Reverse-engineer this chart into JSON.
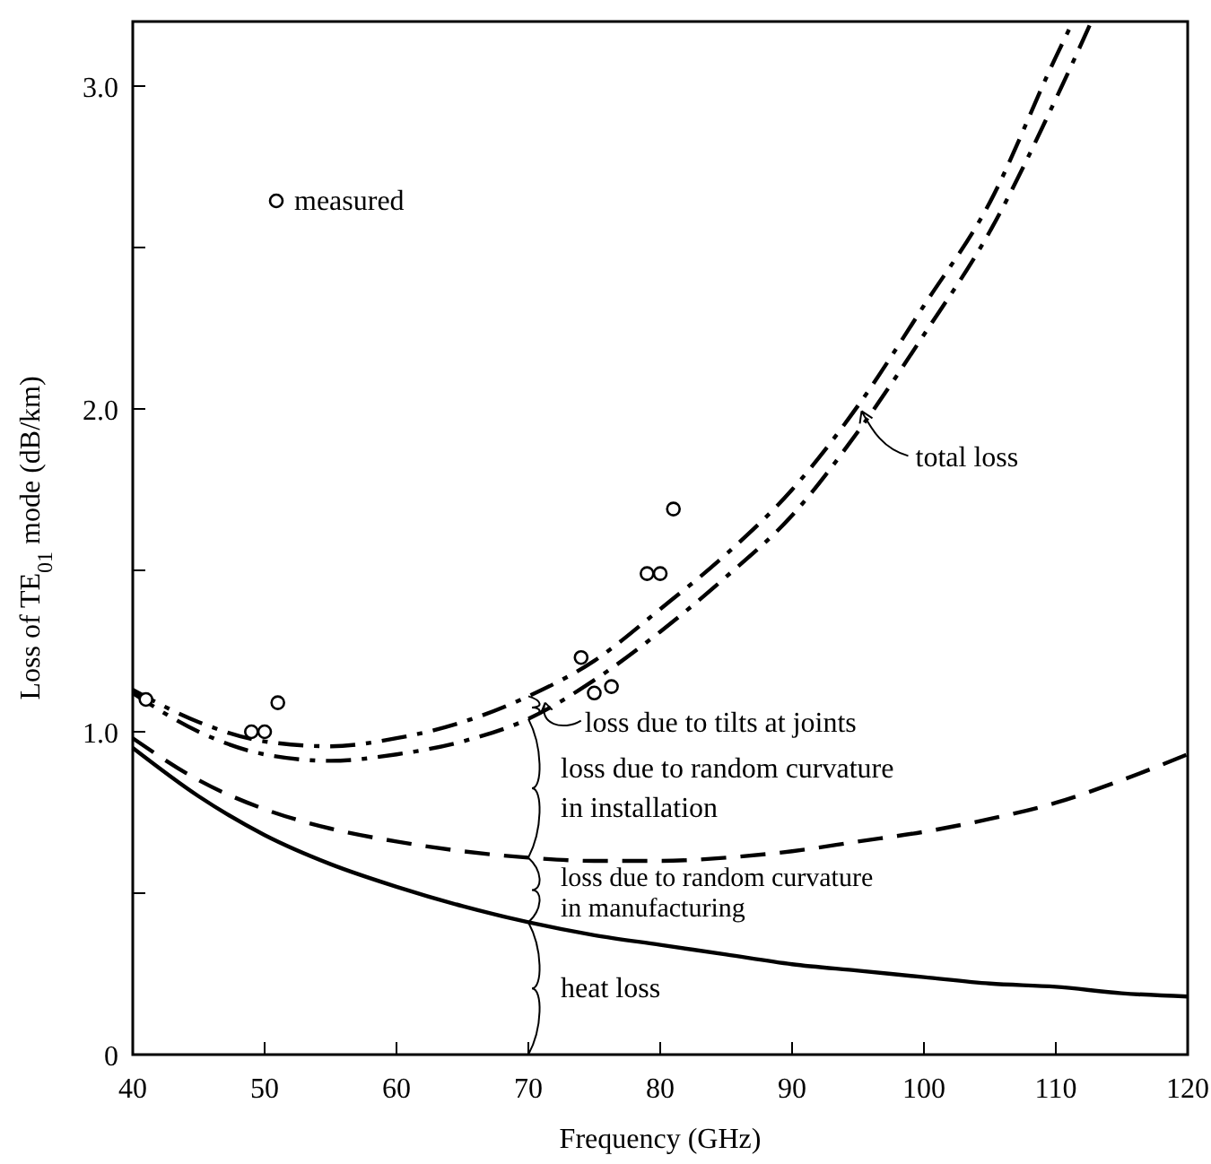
{
  "chart_data": {
    "type": "line",
    "xlabel": "Frequency (GHz)",
    "ylabel": "Loss of TE$_{01}$ mode (dB/km)",
    "xlim": [
      40,
      120
    ],
    "xticks": [
      40,
      50,
      60,
      70,
      80,
      90,
      100,
      110,
      120
    ],
    "ylim": [
      0,
      3.2
    ],
    "yticks": [
      {
        "value": 0,
        "label": "0"
      },
      {
        "value": 0.5,
        "label": null
      },
      {
        "value": 1,
        "label": "1.0"
      },
      {
        "value": 1.5,
        "label": null
      },
      {
        "value": 2,
        "label": "2.0"
      },
      {
        "value": 2.5,
        "label": null
      },
      {
        "value": 3,
        "label": "3.0"
      }
    ],
    "grid": false,
    "legend": "top left",
    "marker": "none",
    "series": [
      {
        "line_style": "solid",
        "color": "#000000",
        "x": [
          40,
          45,
          50,
          55,
          60,
          65,
          70,
          75,
          80,
          85,
          90,
          95,
          100,
          105,
          110,
          115,
          120
        ],
        "values": [
          0.95,
          0.8,
          0.68,
          0.59,
          0.52,
          0.46,
          0.41,
          0.37,
          0.34,
          0.31,
          0.28,
          0.26,
          0.24,
          0.22,
          0.21,
          0.19,
          0.18
        ]
      },
      {
        "line_style": "dashed",
        "color": "#000000",
        "x": [
          40,
          45,
          50,
          55,
          60,
          65,
          70,
          75,
          80,
          85,
          90,
          95,
          100,
          105,
          110,
          115,
          120
        ],
        "values": [
          0.98,
          0.85,
          0.76,
          0.7,
          0.66,
          0.63,
          0.61,
          0.6,
          0.6,
          0.61,
          0.63,
          0.66,
          0.69,
          0.73,
          0.78,
          0.85,
          0.93
        ]
      },
      {
        "line_style": "dashdot",
        "color": "#000000",
        "x": [
          40,
          45,
          50,
          55,
          60,
          65,
          70,
          75,
          80,
          85,
          90,
          95,
          100,
          105,
          110,
          112.7
        ],
        "values": [
          1.12,
          1.0,
          0.93,
          0.91,
          0.93,
          0.97,
          1.04,
          1.16,
          1.31,
          1.48,
          1.67,
          1.93,
          2.23,
          2.55,
          2.96,
          3.2
        ]
      },
      {
        "name": "total loss",
        "line_style": "dashdot",
        "color": "#000000",
        "x": [
          40,
          45,
          50,
          55,
          60,
          65,
          70,
          75,
          80,
          85,
          90,
          95,
          100,
          105,
          110,
          111.3
        ],
        "values": [
          1.13,
          1.03,
          0.97,
          0.955,
          0.98,
          1.03,
          1.11,
          1.22,
          1.38,
          1.55,
          1.75,
          2.01,
          2.32,
          2.64,
          3.09,
          3.2
        ]
      },
      {
        "type": "scatter",
        "name": "measured",
        "marker": "circle",
        "color": "#000000",
        "x": [
          41,
          49,
          50,
          51,
          74,
          75,
          76.3,
          79,
          80,
          81
        ],
        "values": [
          1.1,
          1.0,
          1.0,
          1.09,
          1.23,
          1.12,
          1.14,
          1.49,
          1.49,
          1.69
        ]
      }
    ],
    "annotations": [
      {
        "text": "loss due to tilts at joints",
        "x": 71,
        "y": 1.09
      },
      "loss due to random curvature\nin installation",
      {
        "text": "loss due to random curvature\nin manufacturing",
        "x": 70,
        "y": 0.41
      },
      "heat loss"
    ]
  }
}
